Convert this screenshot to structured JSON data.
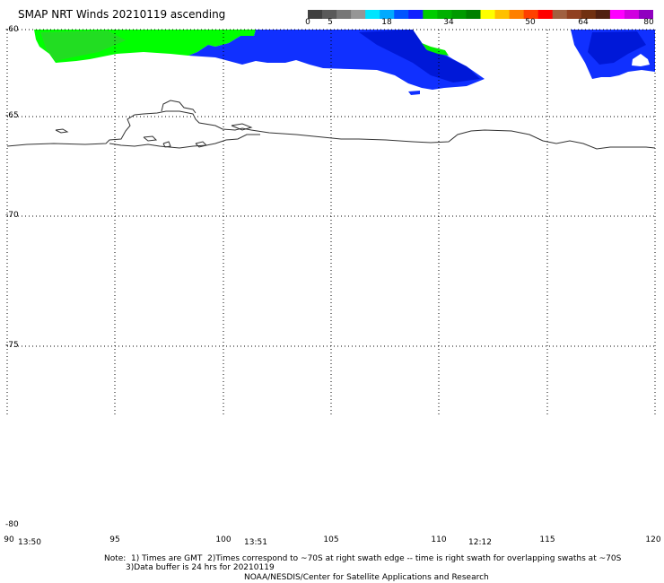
{
  "title": "SMAP NRT Winds 20210119 ascending",
  "colorbar": {
    "labels": [
      "0",
      "5",
      "18",
      "34",
      "50",
      "64",
      "80"
    ],
    "segments": [
      {
        "color": "#404040"
      },
      {
        "color": "#5a5a5a"
      },
      {
        "color": "#777777"
      },
      {
        "color": "#969696"
      },
      {
        "color": "#00e5ff"
      },
      {
        "color": "#00aaff"
      },
      {
        "color": "#0055ff"
      },
      {
        "color": "#1020ff"
      },
      {
        "color": "#00cc00"
      },
      {
        "color": "#00b000"
      },
      {
        "color": "#009a00"
      },
      {
        "color": "#008000"
      },
      {
        "color": "#ffff00"
      },
      {
        "color": "#ffc000"
      },
      {
        "color": "#ff8000"
      },
      {
        "color": "#ff4000"
      },
      {
        "color": "#ff0000"
      },
      {
        "color": "#a06040"
      },
      {
        "color": "#904020"
      },
      {
        "color": "#703010"
      },
      {
        "color": "#502010"
      },
      {
        "color": "#ff00ff"
      },
      {
        "color": "#d000e0"
      },
      {
        "color": "#9000c0"
      }
    ]
  },
  "map": {
    "lat_labels": [
      "-60",
      "-65",
      "-70",
      "-75",
      "-80"
    ],
    "lon_labels": [
      "90",
      "95",
      "100",
      "105",
      "110",
      "115",
      "120"
    ],
    "time_labels": [
      "13:50",
      "13:51",
      "12:12"
    ]
  },
  "colors": {
    "green_wind": "#00ff00",
    "green_dark": "#22dd22",
    "blue_wind": "#1030ff",
    "blue_deep": "#0018d8"
  },
  "footer": {
    "note1": "Note:  1) Times are GMT  2)Times correspond to ~70S at right swath edge -- time is right swath for overlapping swaths at ~70S",
    "note2": "3)Data buffer is 24 hrs for 20210119",
    "credit": "NOAA/NESDIS/Center for Satellite Applications and Research"
  }
}
